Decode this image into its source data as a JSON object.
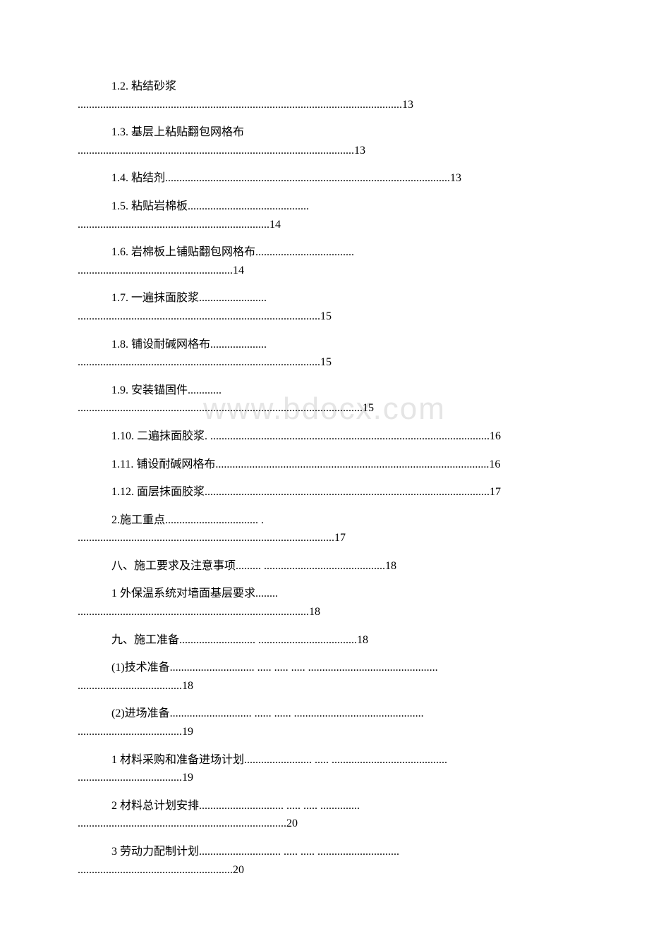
{
  "watermark": "www.bdocx.com",
  "typography": {
    "body_font": "SimSun",
    "body_fontsize_pt": 12,
    "watermark_fontsize_pt": 33,
    "watermark_color": "#e5e5e5",
    "text_color": "#000000",
    "background_color": "#ffffff"
  },
  "toc": [
    {
      "layout": "two",
      "t1": "1.2. 粘结砂浆",
      "t2": "...................................................................................................................13"
    },
    {
      "layout": "two",
      "t1": "1.3. 基层上粘贴翻包网格布",
      "t2": "..................................................................................................13"
    },
    {
      "layout": "single",
      "t1": "1.4. 粘结剂.....................................................................................................13"
    },
    {
      "layout": "two",
      "t1": "1.5. 粘贴岩棉板...........................................",
      "t2": "....................................................................14"
    },
    {
      "layout": "two",
      "t1": "1.6. 岩棉板上铺贴翻包网格布...................................",
      "t2": ".......................................................14"
    },
    {
      "layout": "two",
      "t1": "1.7. 一遍抹面胶浆........................",
      "t2": "......................................................................................15"
    },
    {
      "layout": "two",
      "t1": "1.8. 铺设耐碱网格布....................",
      "t2": "......................................................................................15"
    },
    {
      "layout": "two",
      "t1": "1.9. 安装锚固件............",
      "t2": ".....................................................................................................15"
    },
    {
      "layout": "single",
      "t1": "1.10. 二遍抹面胶浆. ...................................................................................................16"
    },
    {
      "layout": "single",
      "t1": "1.11. 铺设耐碱网格布.................................................................................................16"
    },
    {
      "layout": "single",
      "t1": "1.12. 面层抹面胶浆.....................................................................................................17"
    },
    {
      "layout": "two",
      "t1": "2.施工重点................................. .",
      "t2": "...........................................................................................17"
    },
    {
      "layout": "single",
      "t1": "八、施工要求及注意事项......... ...........................................18"
    },
    {
      "layout": "two",
      "t1": "1 外保温系统对墙面基层要求........",
      "t2": "..................................................................................18"
    },
    {
      "layout": "single",
      "t1": "九、施工准备........................... ...................................18"
    },
    {
      "layout": "two",
      "t1": "(1)技术准备.............................. ..... ..... ..... ..............................................",
      "t2": ".....................................18"
    },
    {
      "layout": "two",
      "t1": "(2)进场准备............................. ...... ...... ..............................................",
      "t2": ".....................................19"
    },
    {
      "layout": "two",
      "t1": "1 材料采购和准备进场计划........................ ..... .........................................",
      "t2": ".....................................19"
    },
    {
      "layout": "two",
      "t1": "2 材料总计划安排.............................. ..... ..... ..............",
      "t2": "..........................................................................20"
    },
    {
      "layout": "two",
      "t1": "3 劳动力配制计划............................. ..... ..... .............................",
      "t2": ".......................................................20"
    }
  ]
}
